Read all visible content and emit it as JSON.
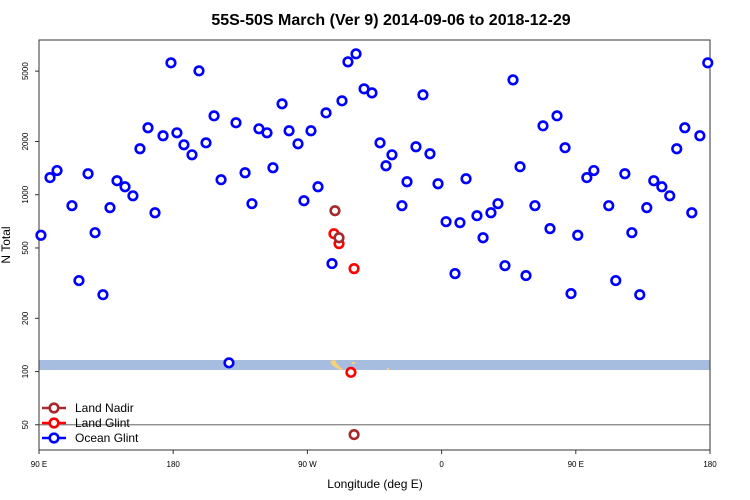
{
  "chart_data": {
    "type": "scatter",
    "title": "55S-50S March (Ver 9)   2014-09-06 to 2018-12-29",
    "xlabel": "Longitude (deg E)",
    "ylabel": "N Total",
    "y_scale": "log",
    "ylim": [
      36,
      7500
    ],
    "xlim_deg_east_unwrapped": [
      90,
      540
    ],
    "x_tick_labels": [
      "90 E",
      "180",
      "90 W",
      "0",
      "90 E",
      "180"
    ],
    "y_ticks": [
      50,
      100,
      200,
      500,
      1000,
      2000,
      5000
    ],
    "reference_line_value": 50,
    "legend_placement": "bottom-left",
    "grid": false,
    "series": [
      {
        "name": "Land Nadir",
        "color": "#a52a2a",
        "points": [
          [
            -71.5,
            812
          ],
          [
            -68.8,
            571
          ],
          [
            -58.7,
            44
          ]
        ]
      },
      {
        "name": "Land Glint",
        "color": "#ff0000",
        "points": [
          [
            -72.2,
            602
          ],
          [
            -68.8,
            529
          ],
          [
            -58.7,
            382
          ],
          [
            -60.8,
            99
          ]
        ]
      },
      {
        "name": "Ocean Glint",
        "color": "#0000ff",
        "points": [
          [
            91.3,
            590
          ],
          [
            97.4,
            1250
          ],
          [
            102.1,
            1370
          ],
          [
            112.1,
            867
          ],
          [
            116.8,
            327
          ],
          [
            122.9,
            1314
          ],
          [
            127.6,
            610
          ],
          [
            132.9,
            272
          ],
          [
            137.6,
            845
          ],
          [
            142.3,
            1200
          ],
          [
            147.7,
            1109
          ],
          [
            153.0,
            986
          ],
          [
            157.7,
            1820
          ],
          [
            163.1,
            2392
          ],
          [
            167.8,
            791
          ],
          [
            173.2,
            2155
          ],
          [
            178.5,
            5570
          ],
          [
            -177.5,
            2240
          ],
          [
            -172.8,
            1916
          ],
          [
            -167.4,
            1682
          ],
          [
            -162.7,
            5020
          ],
          [
            -158.0,
            1966
          ],
          [
            -152.6,
            2794
          ],
          [
            -147.9,
            1216
          ],
          [
            -142.6,
            112
          ],
          [
            -137.9,
            2553
          ],
          [
            -131.8,
            1331
          ],
          [
            -127.2,
            890
          ],
          [
            -122.5,
            2360
          ],
          [
            -117.1,
            2240
          ],
          [
            -113.1,
            1421
          ],
          [
            -107.0,
            3267
          ],
          [
            -102.3,
            2300
          ],
          [
            -96.3,
            1941
          ],
          [
            -92.3,
            925
          ],
          [
            -87.6,
            2300
          ],
          [
            -82.9,
            1109
          ],
          [
            -77.5,
            2905
          ],
          [
            -73.5,
            408
          ],
          [
            -66.8,
            3397
          ],
          [
            -62.8,
            5640
          ],
          [
            -57.4,
            6265
          ],
          [
            -52.0,
            3970
          ],
          [
            -46.7,
            3767
          ],
          [
            -41.3,
            1966
          ],
          [
            -37.3,
            1458
          ],
          [
            -33.3,
            1682
          ],
          [
            -26.6,
            867
          ],
          [
            -23.2,
            1184
          ],
          [
            -17.2,
            1868
          ],
          [
            -12.5,
            3673
          ],
          [
            -7.8,
            1705
          ],
          [
            -2.4,
            1154
          ],
          [
            3.0,
            704
          ],
          [
            9.0,
            358
          ],
          [
            12.3,
            695
          ],
          [
            16.4,
            1231
          ],
          [
            23.7,
            761
          ],
          [
            27.8,
            571
          ],
          [
            33.1,
            791
          ],
          [
            37.8,
            890
          ],
          [
            42.5,
            397
          ],
          [
            47.9,
            4463
          ],
          [
            52.6,
            1440
          ],
          [
            56.6,
            349
          ],
          [
            62.6,
            867
          ],
          [
            68.0,
            2453
          ],
          [
            72.7,
            643
          ],
          [
            77.4,
            2794
          ],
          [
            82.8,
            1845
          ],
          [
            86.8,
            276
          ]
        ]
      }
    ]
  }
}
